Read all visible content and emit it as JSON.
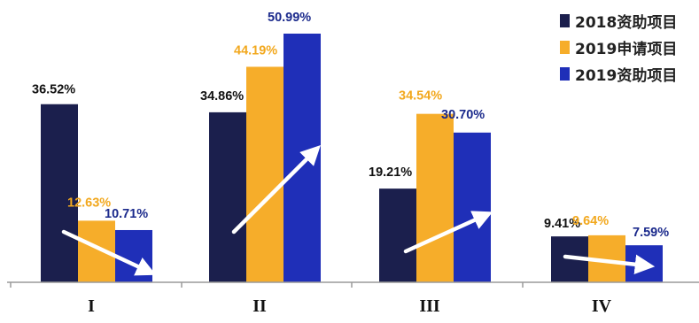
{
  "chart_data": {
    "type": "bar",
    "title": "",
    "xlabel": "",
    "ylabel": "",
    "categories": [
      "I",
      "II",
      "III",
      "IV"
    ],
    "ylim": [
      0,
      55
    ],
    "grid": false,
    "legend_position": "top-right",
    "series": [
      {
        "name": "2018资助项目",
        "color": "#1b1f4d",
        "label_color": "#111111",
        "values": [
          36.52,
          34.86,
          19.21,
          9.41
        ],
        "labels": [
          "36.52%",
          "34.86%",
          "19.21%",
          "9.41%"
        ]
      },
      {
        "name": "2019申请项目",
        "color": "#f6ad2a",
        "label_color": "#f2a81e",
        "values": [
          12.63,
          44.19,
          34.54,
          9.64
        ],
        "labels": [
          "12.63%",
          "44.19%",
          "34.54%",
          "9.64%"
        ]
      },
      {
        "name": "2019资助项目",
        "color": "#1f2fb8",
        "label_color": "#1b2a8c",
        "values": [
          10.71,
          50.99,
          30.7,
          7.59
        ],
        "labels": [
          "10.71%",
          "50.99%",
          "30.70%",
          "7.59%"
        ]
      }
    ],
    "trend_arrows": [
      "down",
      "up",
      "up",
      "down"
    ]
  }
}
